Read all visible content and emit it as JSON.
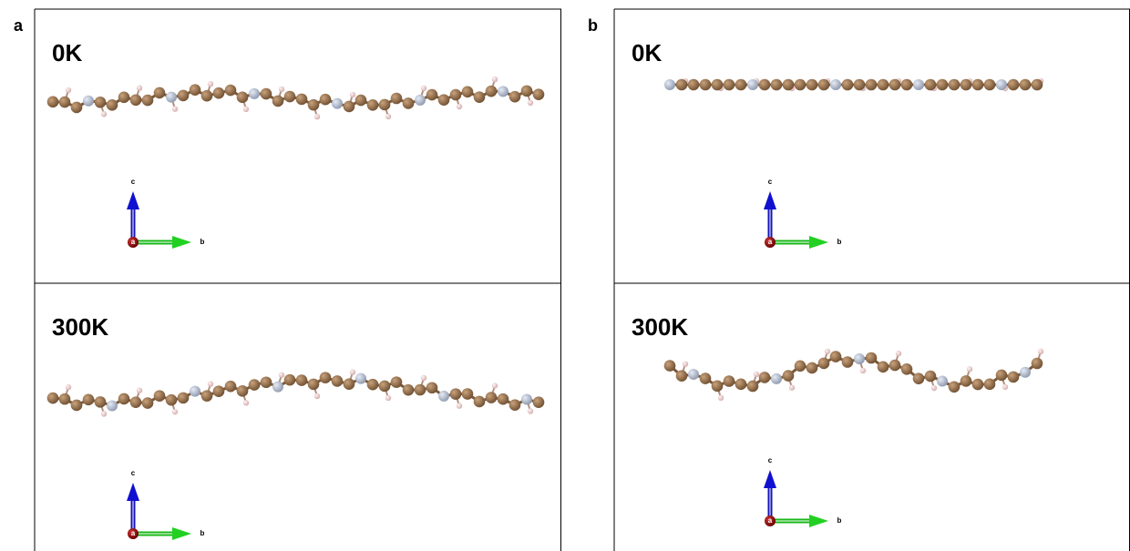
{
  "panels": [
    {
      "label": "a",
      "frames": [
        {
          "temperature": "0K",
          "axes": {
            "c": "c",
            "b": "b",
            "a": "a"
          }
        },
        {
          "temperature": "300K",
          "axes": {
            "c": "c",
            "b": "b",
            "a": "a"
          }
        }
      ]
    },
    {
      "label": "b",
      "frames": [
        {
          "temperature": "0K",
          "axes": {
            "c": "c",
            "b": "b",
            "a": "a"
          }
        },
        {
          "temperature": "300K",
          "axes": {
            "c": "c",
            "b": "b",
            "a": "a"
          }
        }
      ]
    }
  ]
}
